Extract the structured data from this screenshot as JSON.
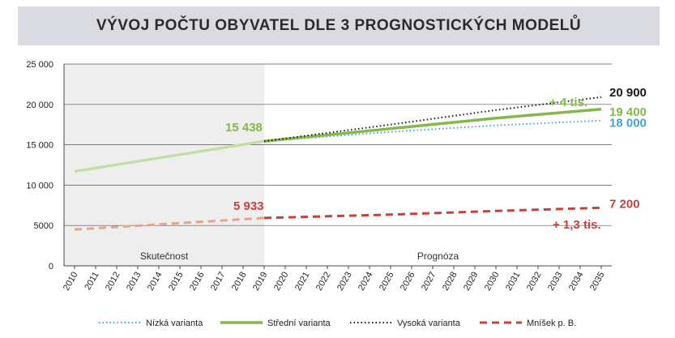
{
  "title": "VÝVOJ POČTU OBYVATEL DLE 3 PROGNOSTICKÝCH MODELŮ",
  "chart_data": {
    "type": "line",
    "title": "VÝVOJ POČTU OBYVATEL DLE 3 PROGNOSTICKÝCH MODELŮ",
    "x": [
      2010,
      2011,
      2012,
      2013,
      2014,
      2015,
      2016,
      2017,
      2018,
      2019,
      2020,
      2021,
      2022,
      2023,
      2024,
      2025,
      2026,
      2027,
      2028,
      2029,
      2030,
      2031,
      2032,
      2033,
      2034,
      2035
    ],
    "ylim": [
      0,
      25000
    ],
    "yticks": [
      0,
      5000,
      10000,
      15000,
      20000,
      25000
    ],
    "ytick_labels": [
      "0",
      "5000",
      "10 000",
      "15 000",
      "20 000",
      "25 000"
    ],
    "grid": "horizontal",
    "legend_position": "bottom",
    "regions": [
      {
        "label": "Skutečnost",
        "from": 2010,
        "to": 2019,
        "shaded": true
      },
      {
        "label": "Prognóza",
        "from": 2019,
        "to": 2035,
        "shaded": false
      }
    ],
    "history": [
      {
        "name": "Střední varianta",
        "color": "#c5dda6",
        "dash": "solid",
        "points": [
          [
            2010,
            11700
          ],
          [
            2019,
            15438
          ]
        ]
      },
      {
        "name": "Mníšek p. B.",
        "color": "#e8a48a",
        "dash": "dashed",
        "points": [
          [
            2010,
            4500
          ],
          [
            2019,
            5933
          ]
        ]
      }
    ],
    "series": [
      {
        "name": "Nízká varianta",
        "color": "#3fa5dc",
        "dash": "dotted",
        "points": [
          [
            2019,
            15438
          ],
          [
            2025,
            16600
          ],
          [
            2030,
            17400
          ],
          [
            2035,
            18000
          ]
        ]
      },
      {
        "name": "Střední varianta",
        "color": "#85b84a",
        "dash": "solid",
        "points": [
          [
            2019,
            15438
          ],
          [
            2025,
            17000
          ],
          [
            2030,
            18300
          ],
          [
            2035,
            19400
          ]
        ]
      },
      {
        "name": "Vysoká varianta",
        "color": "#1a1a1a",
        "dash": "dotted",
        "points": [
          [
            2019,
            15438
          ],
          [
            2025,
            17500
          ],
          [
            2030,
            19300
          ],
          [
            2035,
            20900
          ]
        ]
      },
      {
        "name": "Mníšek p. B.",
        "color": "#c9403a",
        "dash": "dashed",
        "points": [
          [
            2019,
            5933
          ],
          [
            2025,
            6350
          ],
          [
            2030,
            6800
          ],
          [
            2035,
            7200
          ]
        ]
      }
    ],
    "annotations": [
      {
        "text": "15 438",
        "x": 2019,
        "y": 15438,
        "color": "#85b84a"
      },
      {
        "text": "5 933",
        "x": 2019,
        "y": 5933,
        "color": "#c9403a"
      },
      {
        "text": "20 900",
        "x": 2035,
        "y": 20900,
        "color": "#1a1a1a"
      },
      {
        "text": "19 400",
        "x": 2035,
        "y": 19400,
        "color": "#85b84a"
      },
      {
        "text": "18 000",
        "x": 2035,
        "y": 18000,
        "color": "#3fa5dc"
      },
      {
        "text": "7 200",
        "x": 2035,
        "y": 7200,
        "color": "#c9403a"
      },
      {
        "text": "+ 4 tis.",
        "x": 2033,
        "y": 20000,
        "color": "#85b84a"
      },
      {
        "text": "+ 1,3 tis.",
        "x": 2034,
        "y": 6200,
        "color": "#c9403a"
      }
    ]
  }
}
